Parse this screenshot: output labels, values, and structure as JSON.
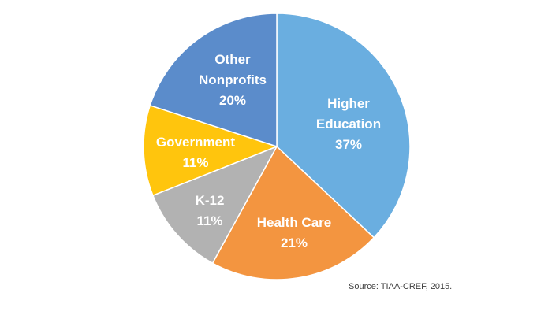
{
  "chart_data": {
    "type": "pie",
    "title": "",
    "start_angle_deg": 0,
    "direction": "clockwise",
    "slices": [
      {
        "name_lines": [
          "Higher",
          "Education"
        ],
        "value": 37,
        "percent_label": "37%",
        "color": "#6aaee0"
      },
      {
        "name_lines": [
          "Health Care"
        ],
        "value": 21,
        "percent_label": "21%",
        "color": "#f39540"
      },
      {
        "name_lines": [
          "K-12"
        ],
        "value": 11,
        "percent_label": "11%",
        "color": "#b2b2b2"
      },
      {
        "name_lines": [
          "Government"
        ],
        "value": 11,
        "percent_label": "11%",
        "color": "#ffc50d"
      },
      {
        "name_lines": [
          "Other",
          "Nonprofits"
        ],
        "value": 20,
        "percent_label": "20%",
        "color": "#5b8ccb"
      }
    ]
  },
  "source": "Source: TIAA-CREF, 2015."
}
